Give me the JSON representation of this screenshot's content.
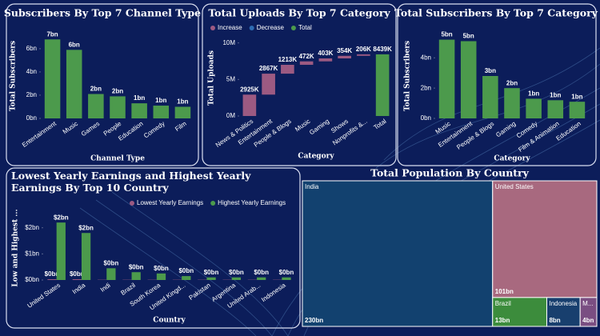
{
  "chart_data": [
    {
      "type": "bar",
      "title": "Subscribers By Top 7 Channel Type",
      "x_label": "Channel Type",
      "y_label": "Total Subscribers",
      "categories": [
        "Entertainment",
        "Music",
        "Games",
        "People",
        "Education",
        "Comedy",
        "Film"
      ],
      "values": [
        6.8,
        5.9,
        2.1,
        1.9,
        1.3,
        1.1,
        1.0
      ],
      "value_labels": [
        "7bn",
        "6bn",
        "2bn",
        "2bn",
        "1bn",
        "1bn",
        "1bn"
      ],
      "color": "#4c9a4c",
      "ylim": [
        0,
        7.3
      ],
      "yticks": [
        {
          "value": 0,
          "label": "0bn"
        },
        {
          "value": 2,
          "label": "2bn"
        },
        {
          "value": 4,
          "label": "4bn"
        },
        {
          "value": 6,
          "label": "6bn"
        }
      ]
    },
    {
      "type": "waterfall",
      "title": "Total Uploads By Top 7 Category",
      "x_label": "Category",
      "y_label": "Total Uploads",
      "categories": [
        "News & Politics",
        "Entertainment",
        "People & Blogs",
        "Music",
        "Gaming",
        "Shows",
        "Nonprofits &...",
        "Total"
      ],
      "series": [
        {
          "name": "Increase",
          "color": "#9c5a82",
          "values": [
            2.925,
            2.867,
            1.213,
            0.472,
            0.403,
            0.354,
            0.206,
            null
          ],
          "value_labels": [
            "2925K",
            "2867K",
            "1213K",
            "472K",
            "403K",
            "354K",
            "206K",
            null
          ]
        },
        {
          "name": "Decrease",
          "color": "#2f6db3",
          "values": [
            null,
            null,
            null,
            null,
            null,
            null,
            null,
            null
          ]
        },
        {
          "name": "Total",
          "color": "#4c9a4c",
          "values": [
            null,
            null,
            null,
            null,
            null,
            null,
            null,
            8.439
          ],
          "value_labels": [
            null,
            null,
            null,
            null,
            null,
            null,
            null,
            "8439K"
          ]
        }
      ],
      "ylim": [
        0,
        10.4
      ],
      "yticks": [
        {
          "value": 0,
          "label": "0M"
        },
        {
          "value": 5,
          "label": "5M"
        },
        {
          "value": 10,
          "label": "10M"
        }
      ]
    },
    {
      "type": "bar",
      "title": "Total Subscribers By Top 7 Category",
      "x_label": "Category",
      "y_label": "Total Subscribers",
      "categories": [
        "Music",
        "Entertainment",
        "People & Blogs",
        "Gaming",
        "Comedy",
        "Film & Animation",
        "Education"
      ],
      "values": [
        5.2,
        5.1,
        2.8,
        2.0,
        1.3,
        1.2,
        1.1
      ],
      "value_labels": [
        "5bn",
        "5bn",
        "3bn",
        "2bn",
        "1bn",
        "1bn",
        "1bn"
      ],
      "color": "#4c9a4c",
      "ylim": [
        0,
        5.6
      ],
      "yticks": [
        {
          "value": 0,
          "label": "0bn"
        },
        {
          "value": 2,
          "label": "2bn"
        },
        {
          "value": 4,
          "label": "4bn"
        }
      ]
    },
    {
      "type": "grouped-bar",
      "title": "Lowest Yearly Earnings and Highest Yearly Earnings By Top 10 Country",
      "x_label": "Country",
      "y_label": "Low and Highest ...",
      "categories": [
        "United States",
        "India",
        "Indi",
        "Brazil",
        "South Korea",
        "United Kingd...",
        "Pakistan",
        "Argentina",
        "United Arab...",
        "Indonesia"
      ],
      "series": [
        {
          "name": "Lowest Yearly Earnings",
          "color": "#9c5a82",
          "values": [
            0.03,
            0.03,
            0.01,
            0.01,
            0.01,
            0.01,
            0.01,
            0.01,
            0.01,
            0.01
          ],
          "value_labels": [
            "$0bn",
            "$0bn",
            null,
            null,
            null,
            null,
            null,
            null,
            null,
            null
          ]
        },
        {
          "name": "Highest Yearly Earnings",
          "color": "#4c9a4c",
          "values": [
            2.2,
            1.8,
            0.45,
            0.3,
            0.25,
            0.15,
            0.1,
            0.1,
            0.1,
            0.1
          ],
          "value_labels": [
            "$2bn",
            "$2bn",
            "$0bn",
            "$0bn",
            "$0bn",
            "$0bn",
            "$0bn",
            "$0bn",
            "$0bn",
            "$0bn"
          ]
        }
      ],
      "ylim": [
        0,
        2.45
      ],
      "yticks": [
        {
          "value": 0,
          "label": "$0bn"
        },
        {
          "value": 1,
          "label": "$1bn"
        },
        {
          "value": 2,
          "label": "$2bn"
        }
      ]
    },
    {
      "type": "treemap",
      "title": "Total Population By Country",
      "categories": [
        "India",
        "United States",
        "Brazil",
        "Indonesia",
        "M..."
      ],
      "values": [
        230,
        101,
        13,
        8,
        4
      ],
      "value_labels": [
        "230bn",
        "101bn",
        "13bn",
        "8bn",
        "4bn"
      ],
      "colors": [
        "#12416f",
        "#a8697f",
        "#3c8c3c",
        "#183f6e",
        "#7a4e82"
      ]
    }
  ]
}
